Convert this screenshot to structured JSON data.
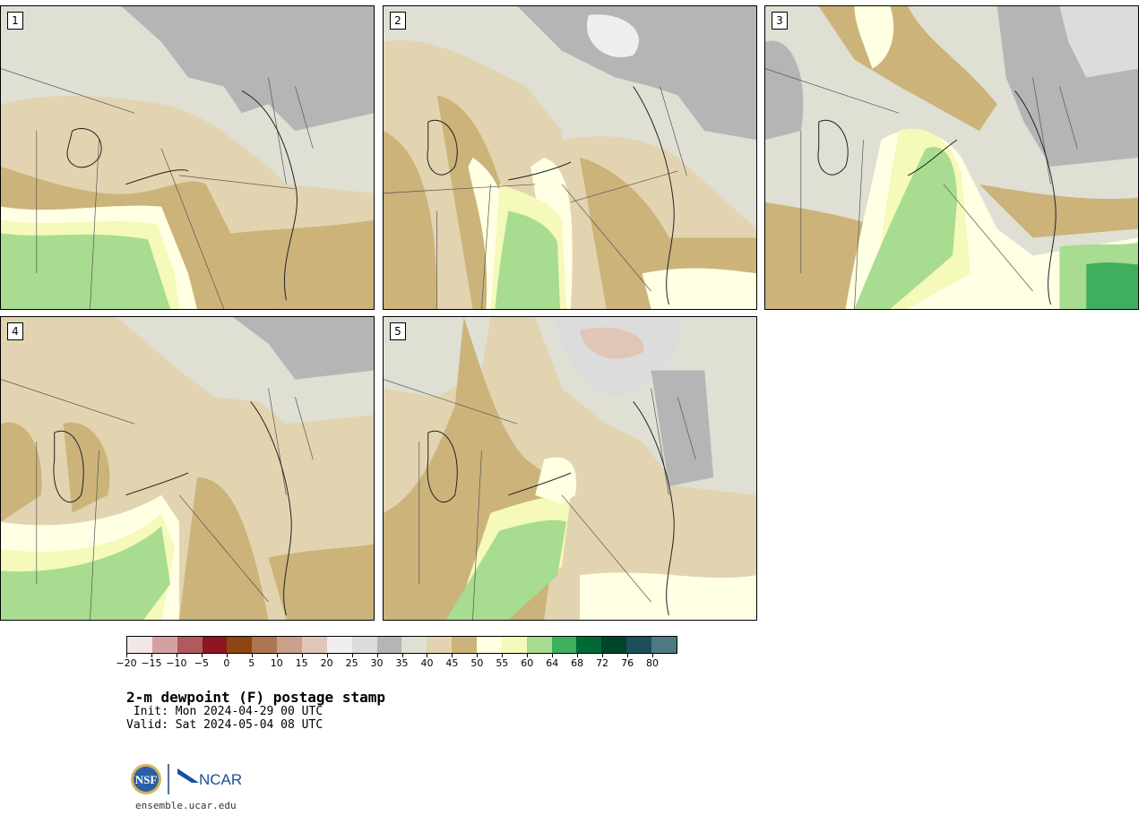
{
  "panels": [
    {
      "label": "1"
    },
    {
      "label": "2"
    },
    {
      "label": "3"
    },
    {
      "label": "4"
    },
    {
      "label": "5"
    }
  ],
  "colorbar": {
    "colors": [
      "#f2e6e6",
      "#d4a0a4",
      "#b0595f",
      "#8e1620",
      "#8c4513",
      "#ad7551",
      "#c8a08b",
      "#e0c6b6",
      "#efefef",
      "#dcdcdc",
      "#b5b5b5",
      "#dfdfd4",
      "#e2d4b0",
      "#cbb37a",
      "#ffffe4",
      "#f5f9b9",
      "#a8dc90",
      "#3fae5e",
      "#006a35",
      "#00452a",
      "#1b5058",
      "#4d7a80"
    ],
    "ticks": [
      "−20",
      "−15",
      "−10",
      "−5",
      "0",
      "5",
      "10",
      "15",
      "20",
      "25",
      "30",
      "35",
      "40",
      "45",
      "50",
      "55",
      "60",
      "64",
      "68",
      "72",
      "76",
      "80"
    ]
  },
  "title": "2-m dewpoint (F) postage stamp",
  "init_line": " Init: Mon 2024-04-29 00 UTC",
  "valid_line": "Valid: Sat 2024-05-04 08 UTC",
  "logos": {
    "left": "NSF",
    "right": "NCAR"
  },
  "footer_url": "ensemble.ucar.edu"
}
